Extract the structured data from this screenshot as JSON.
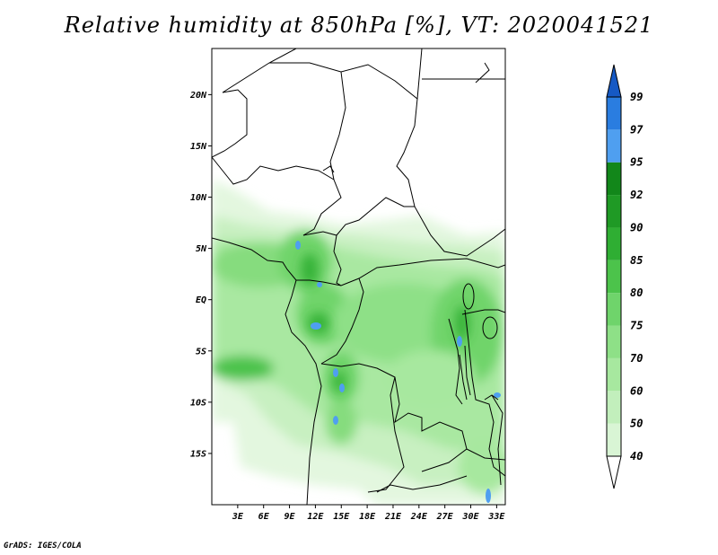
{
  "title": "Relative humidity at 850hPa [%], VT: 2020041521",
  "credit": "GrADS: IGES/COLA",
  "map": {
    "lon_range": [
      0,
      34
    ],
    "lat_range": [
      -20,
      24.5
    ],
    "lat_ticks": [
      {
        "value": 20,
        "label": "20N"
      },
      {
        "value": 15,
        "label": "15N"
      },
      {
        "value": 10,
        "label": "10N"
      },
      {
        "value": 5,
        "label": "5N"
      },
      {
        "value": 0,
        "label": "EQ"
      },
      {
        "value": -5,
        "label": "5S"
      },
      {
        "value": -10,
        "label": "10S"
      },
      {
        "value": -15,
        "label": "15S"
      }
    ],
    "lon_ticks": [
      {
        "value": 3,
        "label": "3E"
      },
      {
        "value": 6,
        "label": "6E"
      },
      {
        "value": 9,
        "label": "9E"
      },
      {
        "value": 12,
        "label": "12E"
      },
      {
        "value": 15,
        "label": "15E"
      },
      {
        "value": 18,
        "label": "18E"
      },
      {
        "value": 21,
        "label": "21E"
      },
      {
        "value": 24,
        "label": "24E"
      },
      {
        "value": 27,
        "label": "27E"
      },
      {
        "value": 30,
        "label": "30E"
      },
      {
        "value": 33,
        "label": "33E"
      }
    ]
  },
  "colorbar": {
    "levels": [
      {
        "label": "40",
        "color": "#f0fbef"
      },
      {
        "label": "50",
        "color": "#d9f5d5"
      },
      {
        "label": "60",
        "color": "#c2efbc"
      },
      {
        "label": "70",
        "color": "#a7e89f"
      },
      {
        "label": "75",
        "color": "#8ee087"
      },
      {
        "label": "80",
        "color": "#6fd46b"
      },
      {
        "label": "85",
        "color": "#4cc34b"
      },
      {
        "label": "90",
        "color": "#2fae33"
      },
      {
        "label": "92",
        "color": "#1f9a25"
      },
      {
        "label": "95",
        "color": "#12871a"
      },
      {
        "label": "97",
        "color": "#4f9ff0"
      },
      {
        "label": "99",
        "color": "#2a7de0"
      }
    ],
    "low_color": "#ffffff",
    "high_color": "#1659c4"
  }
}
